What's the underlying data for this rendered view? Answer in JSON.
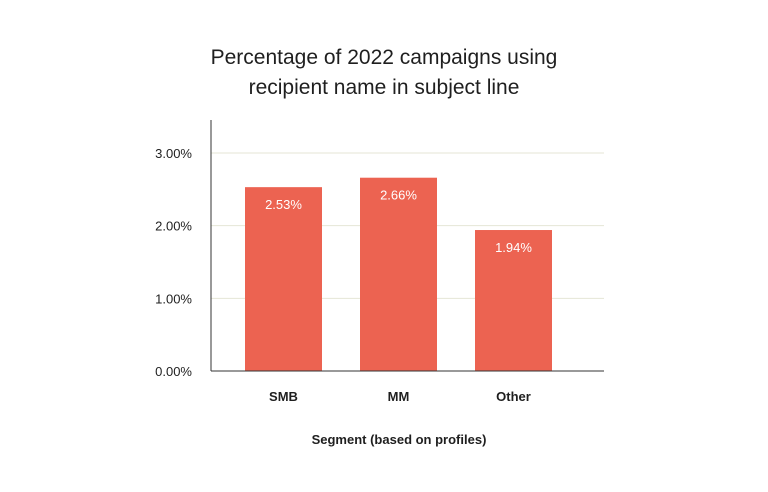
{
  "chart_data": {
    "type": "bar",
    "title_lines": [
      "Percentage of 2022 campaigns using",
      "recipient name in subject line"
    ],
    "categories": [
      "SMB",
      "MM",
      "Other"
    ],
    "values": [
      2.53,
      2.66,
      1.94
    ],
    "data_labels": [
      "2.53%",
      "2.66%",
      "1.94%"
    ],
    "xlabel": "Segment (based on profiles)",
    "ylabel": "",
    "ylim": [
      0,
      3.0
    ],
    "yticks": [
      0,
      1,
      2,
      3
    ],
    "ytick_labels": [
      "0.00%",
      "1.00%",
      "2.00%",
      "3.00%"
    ],
    "grid": true,
    "colors": {
      "bar": "#ec6351",
      "grid": "#e4e6d6",
      "axis": "#333333",
      "text": "#1f1f1f",
      "data_label": "#ffffff"
    }
  }
}
